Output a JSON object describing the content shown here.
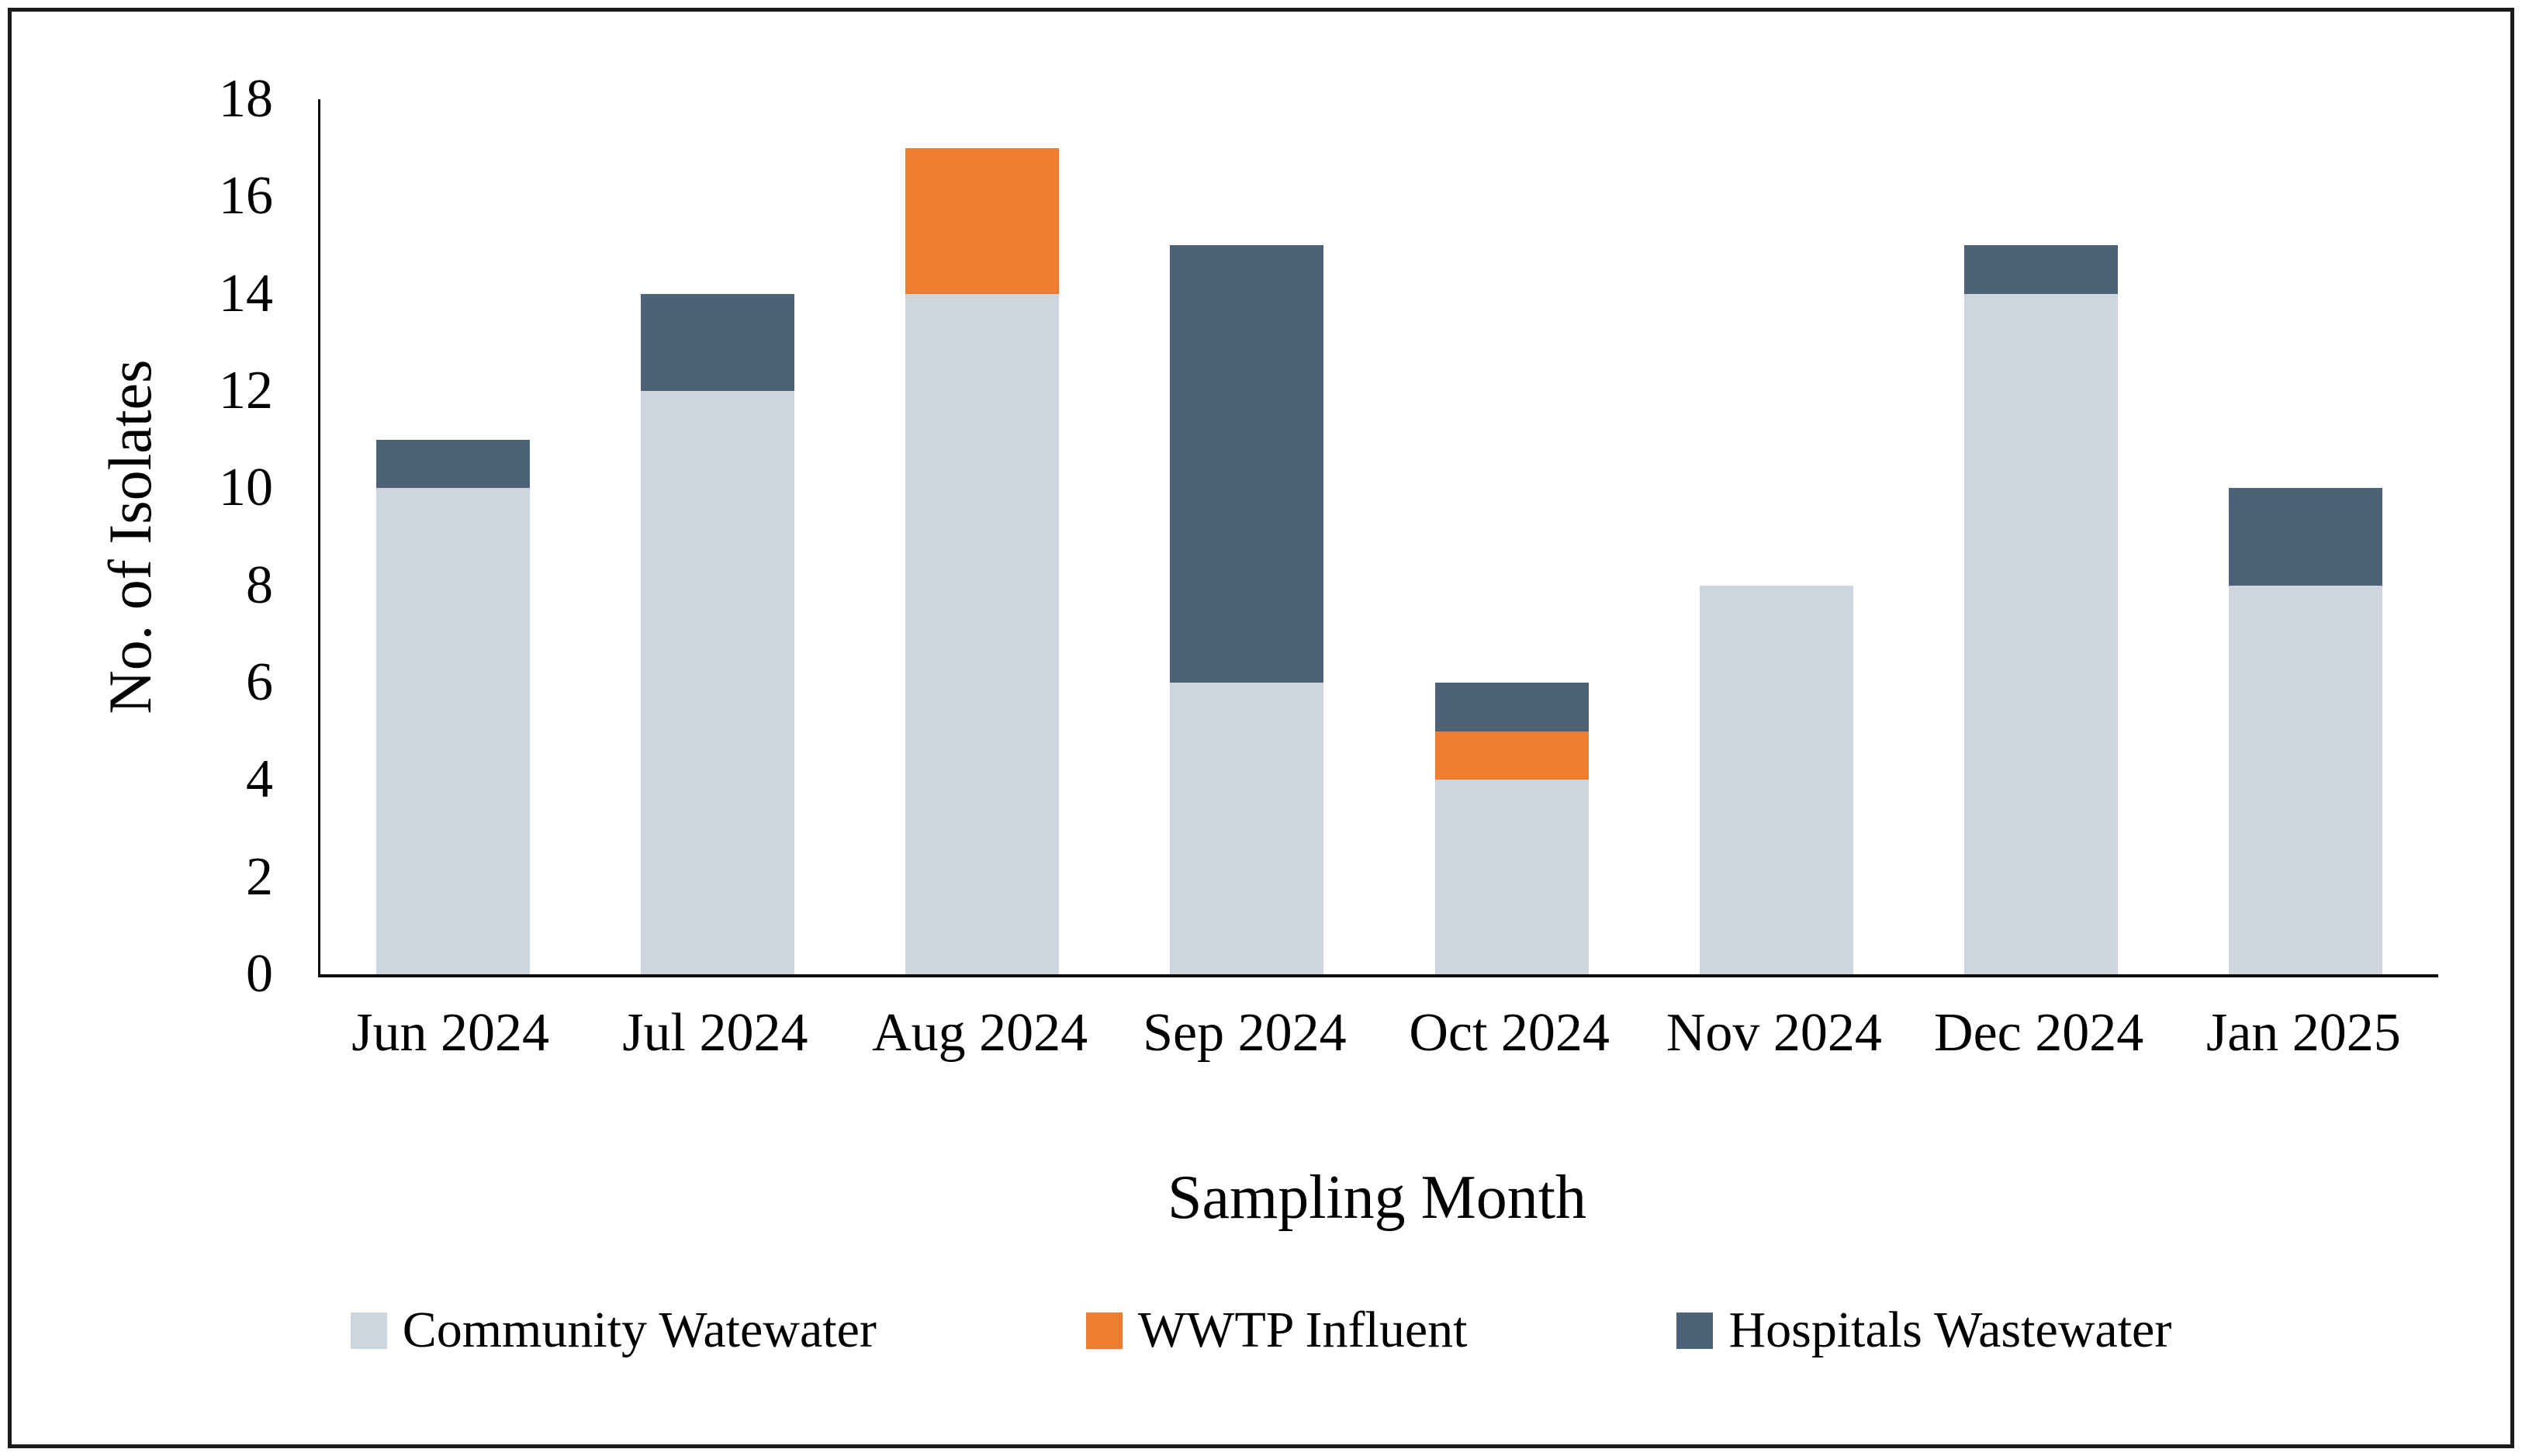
{
  "page": {
    "background": "#ffffff",
    "frame_border_color": "#1b1b1b",
    "axis_line_color": "#0d0d0d",
    "text_color": "#000000"
  },
  "chart_data": {
    "type": "bar",
    "stacked": true,
    "title": "",
    "xlabel": "Sampling Month",
    "ylabel": "No. of Isolates",
    "categories": [
      "Jun 2024",
      "Jul 2024",
      "Aug 2024",
      "Sep 2024",
      "Oct 2024",
      "Nov 2024",
      "Dec 2024",
      "Jan 2025"
    ],
    "series": [
      {
        "name": "Community Watewater",
        "color": "#cfd5de",
        "values": [
          10,
          12,
          14,
          6,
          4,
          8,
          14,
          8
        ]
      },
      {
        "name": "WWTP Influent",
        "color": "#ec7d31",
        "values": [
          0,
          0,
          3,
          0,
          1,
          0,
          0,
          0
        ]
      },
      {
        "name": "Hospitals Wastewater",
        "color": "#4e6277",
        "values": [
          1,
          2,
          0,
          9,
          1,
          0,
          1,
          2
        ]
      }
    ],
    "totals": [
      11,
      14,
      17,
      15,
      6,
      8,
      15,
      10
    ],
    "ylim": [
      0,
      18
    ],
    "ytick_step": 2,
    "ytick_labels": [
      "0",
      "2",
      "4",
      "6",
      "8",
      "10",
      "12",
      "14",
      "16",
      "18"
    ],
    "grid": false,
    "legend_position": "bottom"
  }
}
